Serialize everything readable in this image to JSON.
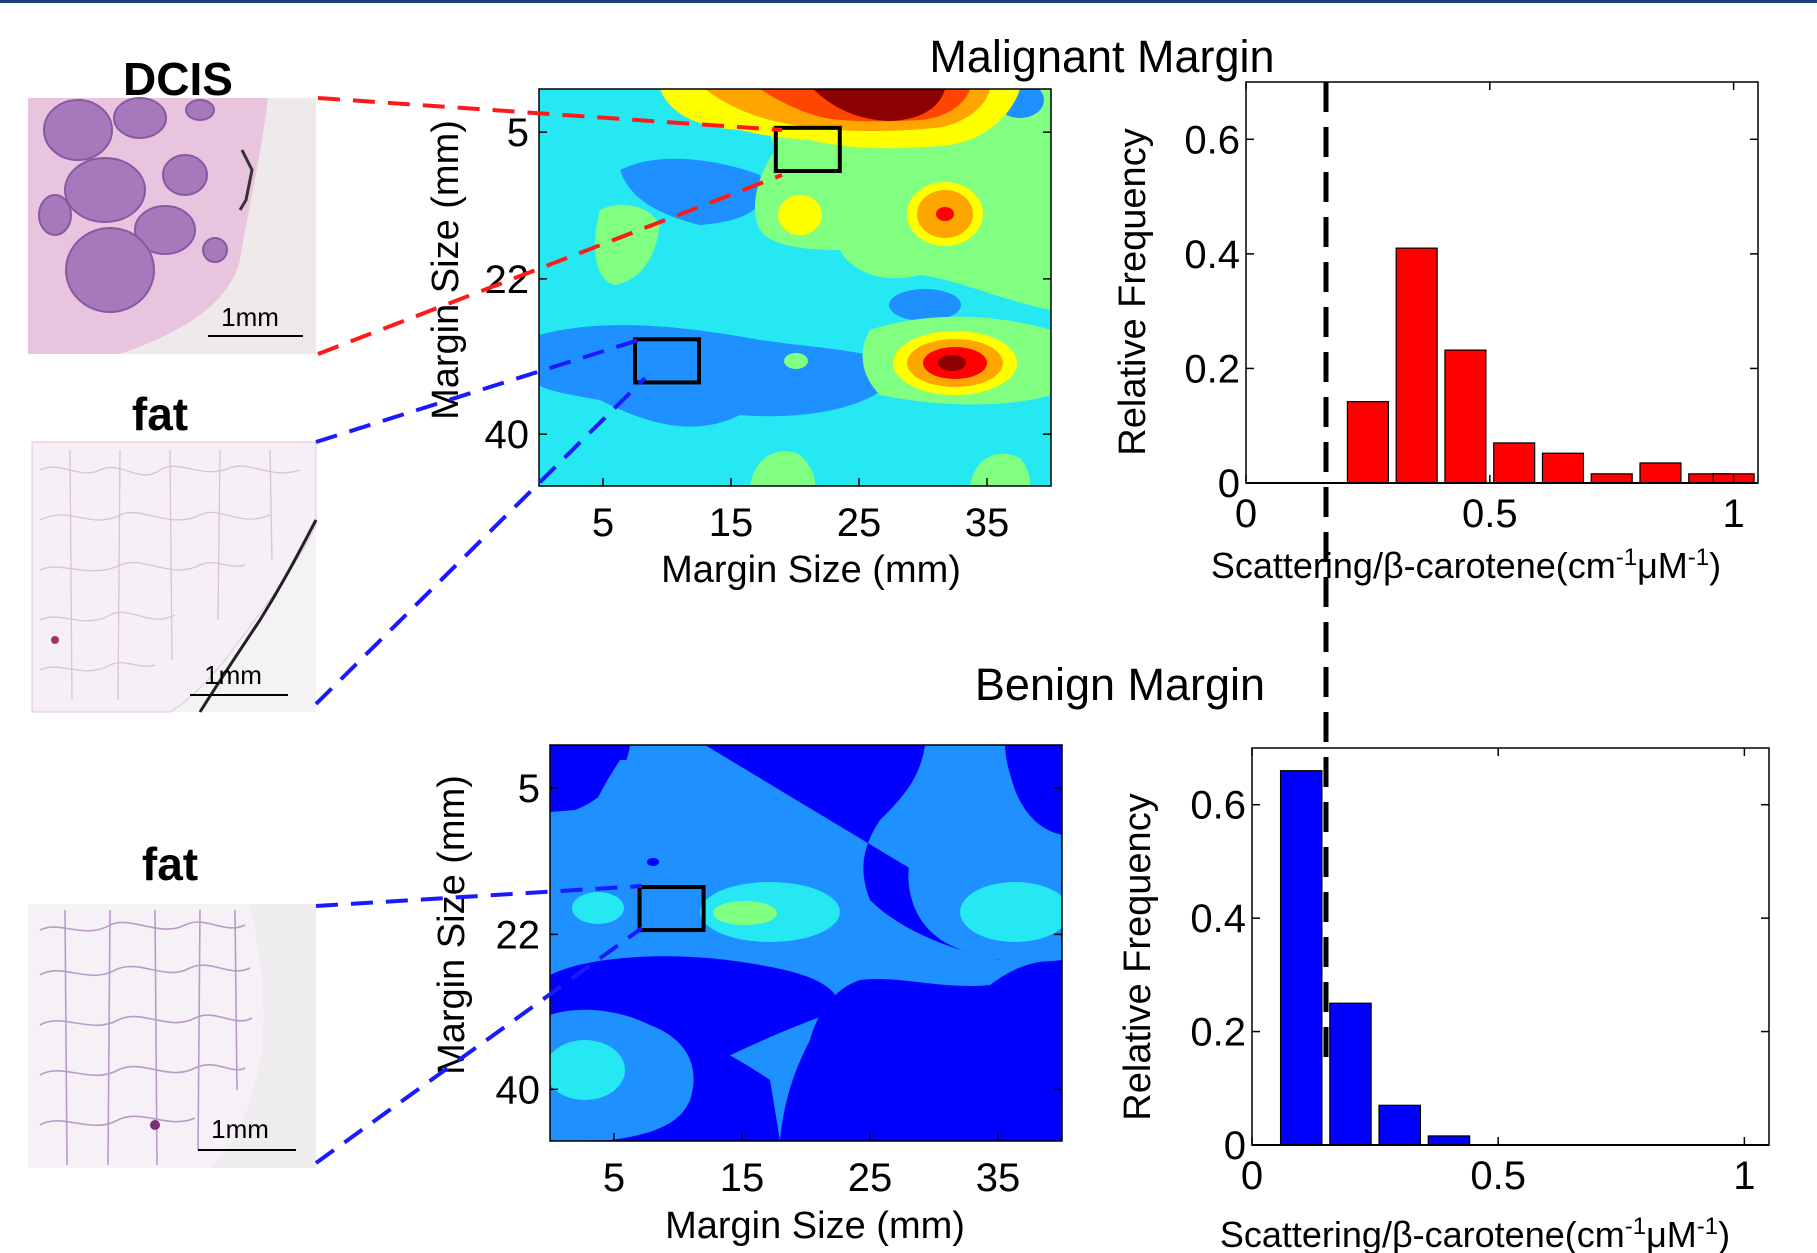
{
  "figure": {
    "top_title": "Malignant Margin",
    "bottom_title": "Benign Margin"
  },
  "tissue_images": [
    {
      "label": "DCIS",
      "scale": "1mm"
    },
    {
      "label": "fat",
      "scale": "1mm"
    },
    {
      "label": "fat",
      "scale": "1mm"
    }
  ],
  "colors": {
    "malignant_bar": "#ff0000",
    "benign_bar": "#0000ff",
    "red_link": "#ff1a1a",
    "blue_link": "#1a1aff",
    "threshold": "#000000"
  },
  "chart_data": [
    {
      "type": "heatmap",
      "title": "Malignant Margin",
      "xlabel": "Margin Size (mm)",
      "ylabel": "Margin Size (mm)",
      "xticks": [
        "5",
        "15",
        "25",
        "35"
      ],
      "yticks": [
        "5",
        "22",
        "40"
      ],
      "xlim": [
        0,
        40
      ],
      "ylim": [
        0,
        46
      ],
      "highlight_boxes": [
        [
          21,
          7
        ],
        [
          10,
          31.5
        ]
      ]
    },
    {
      "type": "bar",
      "xlabel": "Scattering/β-carotene(cm-1μM-1)",
      "ylabel": "Relative Frequency",
      "xticks": [
        "0",
        "0.5",
        "1"
      ],
      "yticks": [
        "0",
        "0.2",
        "0.4",
        "0.6"
      ],
      "xlim": [
        0,
        1.05
      ],
      "ylim": [
        0,
        0.7
      ],
      "bin_centers": [
        0.05,
        0.15,
        0.25,
        0.35,
        0.45,
        0.55,
        0.65,
        0.75,
        0.85,
        0.95,
        1.0
      ],
      "values": [
        0.0,
        0.0,
        0.142,
        0.41,
        0.232,
        0.07,
        0.052,
        0.016,
        0.035,
        0.016,
        0.016
      ],
      "threshold_x": 0.16
    },
    {
      "type": "heatmap",
      "title": "Benign Margin",
      "xlabel": "Margin Size (mm)",
      "ylabel": "Margin Size (mm)",
      "xticks": [
        "5",
        "15",
        "25",
        "35"
      ],
      "yticks": [
        "5",
        "22",
        "40"
      ],
      "xlim": [
        0,
        40
      ],
      "ylim": [
        0,
        46
      ],
      "highlight_boxes": [
        [
          9.5,
          19
        ]
      ]
    },
    {
      "type": "bar",
      "xlabel": "Scattering/β-carotene(cm-1μM-1)",
      "ylabel": "Relative Frequency",
      "xticks": [
        "0",
        "0.5",
        "1"
      ],
      "yticks": [
        "0",
        "0.2",
        "0.4",
        "0.6"
      ],
      "xlim": [
        0,
        1.05
      ],
      "ylim": [
        0,
        0.7
      ],
      "bin_centers": [
        0.1,
        0.2,
        0.3,
        0.4
      ],
      "values": [
        0.66,
        0.25,
        0.07,
        0.016
      ],
      "threshold_x": 0.16
    }
  ]
}
